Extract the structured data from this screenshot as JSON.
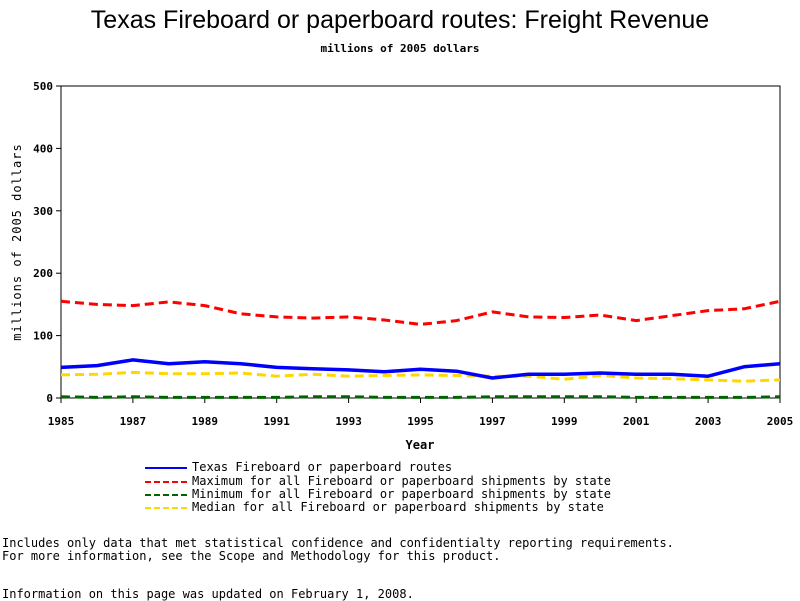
{
  "chart_data": {
    "type": "line",
    "title": "Texas Fireboard or paperboard routes: Freight Revenue",
    "subtitle": "millions of 2005 dollars",
    "xlabel": "Year",
    "ylabel": "millions of 2005 dollars",
    "xlim": [
      1985,
      2005
    ],
    "ylim": [
      0,
      500
    ],
    "xticks": [
      1985,
      1987,
      1989,
      1991,
      1993,
      1995,
      1997,
      1999,
      2001,
      2003,
      2005
    ],
    "yticks": [
      0,
      100,
      200,
      300,
      400,
      500
    ],
    "grid": false,
    "legend_placement": "bottom",
    "x": [
      1985,
      1986,
      1987,
      1988,
      1989,
      1990,
      1991,
      1992,
      1993,
      1994,
      1995,
      1996,
      1997,
      1998,
      1999,
      2000,
      2001,
      2002,
      2003,
      2004,
      2005
    ],
    "series": [
      {
        "name": "Texas Fireboard or paperboard routes",
        "color": "#0000ff",
        "style": "solid",
        "values": [
          49,
          52,
          61,
          55,
          58,
          55,
          49,
          47,
          45,
          42,
          46,
          43,
          32,
          38,
          38,
          40,
          38,
          38,
          35,
          50,
          55
        ]
      },
      {
        "name": "Maximum for all Fireboard or paperboard shipments by state",
        "color": "#ff0000",
        "style": "dashed",
        "values": [
          155,
          150,
          148,
          154,
          148,
          135,
          130,
          128,
          130,
          125,
          118,
          124,
          138,
          130,
          129,
          133,
          124,
          132,
          140,
          143,
          155
        ]
      },
      {
        "name": "Minimum for all Fireboard or paperboard shipments by state",
        "color": "#006400",
        "style": "dashed",
        "values": [
          2,
          1,
          2,
          1,
          1,
          1,
          1,
          2,
          2,
          1,
          1,
          1,
          2,
          2,
          2,
          2,
          1,
          1,
          1,
          1,
          2
        ]
      },
      {
        "name": "Median for all Fireboard or paperboard shipments by state",
        "color": "#ffd700",
        "style": "dashed",
        "values": [
          37,
          38,
          41,
          39,
          39,
          40,
          35,
          38,
          35,
          36,
          37,
          36,
          35,
          35,
          30,
          36,
          32,
          31,
          29,
          27,
          29
        ]
      }
    ]
  },
  "footer": {
    "note_line1": "Includes only data that met statistical confidence and confidentialty reporting requirements.",
    "note_line2": "For more information, see the Scope and Methodology for this product.",
    "updated": "Information on this page was updated on February 1, 2008."
  }
}
